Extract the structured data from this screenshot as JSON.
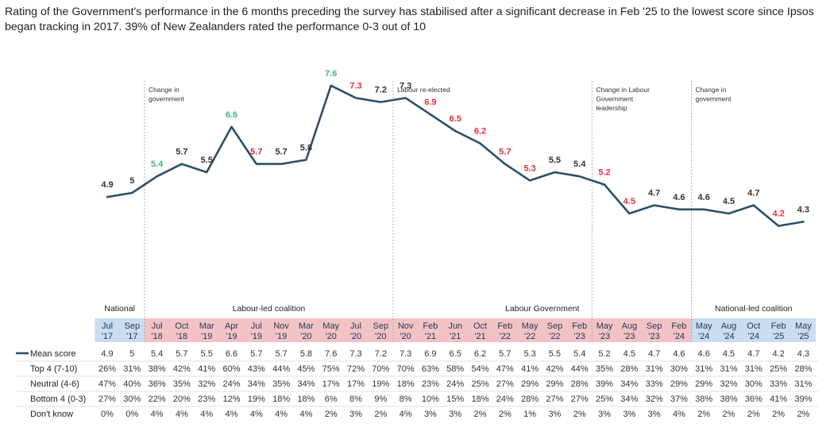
{
  "title": "Rating of the Government's performance in the 6 months preceding the survey has stabilised after a significant decrease in Feb '25 to the lowest score since Ipsos began tracking in 2017. 39% of New Zealanders rated the performance 0-3 out of 10",
  "colors": {
    "line": "#2b5068",
    "up": "#4caf7a",
    "down": "#e0313d",
    "neutral": "#333333",
    "national_band": "#c9dcf0",
    "labour_band": "#f3c2c5"
  },
  "chart_data": {
    "type": "line",
    "title": "Rating of the Government's performance",
    "ylim": [
      3,
      9
    ],
    "categories": [
      {
        "month": "Jul",
        "year": "'17",
        "band": "national"
      },
      {
        "month": "Sep",
        "year": "'17",
        "band": "national"
      },
      {
        "month": "Jul",
        "year": "'18",
        "band": "labour"
      },
      {
        "month": "Oct",
        "year": "'18",
        "band": "labour"
      },
      {
        "month": "Mar",
        "year": "'19",
        "band": "labour"
      },
      {
        "month": "Apr",
        "year": "'19",
        "band": "labour"
      },
      {
        "month": "Jul",
        "year": "'19",
        "band": "labour"
      },
      {
        "month": "Nov",
        "year": "'19",
        "band": "labour"
      },
      {
        "month": "Mar",
        "year": "'20",
        "band": "labour"
      },
      {
        "month": "May",
        "year": "'20",
        "band": "labour"
      },
      {
        "month": "Jul",
        "year": "'20",
        "band": "labour"
      },
      {
        "month": "Sep",
        "year": "'20",
        "band": "labour"
      },
      {
        "month": "Nov",
        "year": "'20",
        "band": "labour"
      },
      {
        "month": "Feb",
        "year": "'21",
        "band": "labour"
      },
      {
        "month": "Jun",
        "year": "'21",
        "band": "labour"
      },
      {
        "month": "Oct",
        "year": "'21",
        "band": "labour"
      },
      {
        "month": "Feb",
        "year": "'22",
        "band": "labour"
      },
      {
        "month": "May",
        "year": "'22",
        "band": "labour"
      },
      {
        "month": "Sep",
        "year": "'22",
        "band": "labour"
      },
      {
        "month": "Feb",
        "year": "'23",
        "band": "labour"
      },
      {
        "month": "May",
        "year": "'23",
        "band": "labour"
      },
      {
        "month": "Aug",
        "year": "'23",
        "band": "labour"
      },
      {
        "month": "Sep",
        "year": "'23",
        "band": "labour"
      },
      {
        "month": "Feb",
        "year": "'24",
        "band": "labour"
      },
      {
        "month": "May",
        "year": "'24",
        "band": "national"
      },
      {
        "month": "Aug",
        "year": "'24",
        "band": "national"
      },
      {
        "month": "Oct",
        "year": "'24",
        "band": "national"
      },
      {
        "month": "Feb",
        "year": "'25",
        "band": "national"
      },
      {
        "month": "May",
        "year": "'25",
        "band": "national"
      }
    ],
    "series": [
      {
        "name": "Mean score",
        "values": [
          4.9,
          5,
          5.4,
          5.7,
          5.5,
          6.6,
          5.7,
          5.7,
          5.8,
          7.6,
          7.3,
          7.2,
          7.3,
          6.9,
          6.5,
          6.2,
          5.7,
          5.3,
          5.5,
          5.4,
          5.2,
          4.5,
          4.7,
          4.6,
          4.6,
          4.5,
          4.7,
          4.2,
          4.3
        ],
        "labels": [
          "4.9",
          "5",
          "5.4",
          "5.7",
          "5.5",
          "6.6",
          "5.7",
          "5.7",
          "5.8",
          "7.6",
          "7.3",
          "7.2",
          "7.3",
          "6.9",
          "6.5",
          "6.2",
          "5.7",
          "5.3",
          "5.5",
          "5.4",
          "5.2",
          "4.5",
          "4.7",
          "4.6",
          "4.6",
          "4.5",
          "4.7",
          "4.2",
          "4.3"
        ],
        "label_colors": [
          "neutral",
          "neutral",
          "up",
          "neutral",
          "neutral",
          "up",
          "down",
          "neutral",
          "neutral",
          "up",
          "down",
          "neutral",
          "neutral",
          "down",
          "down",
          "down",
          "down",
          "down",
          "neutral",
          "neutral",
          "down",
          "down",
          "neutral",
          "neutral",
          "neutral",
          "neutral",
          "neutral",
          "down",
          "neutral"
        ]
      }
    ],
    "annotations": [
      {
        "text": [
          "Change in",
          "government"
        ],
        "after_index": 1
      },
      {
        "text": [
          "Labour re-elected"
        ],
        "after_index": 11
      },
      {
        "text": [
          "Change in Labour",
          "Government",
          "leadership"
        ],
        "after_index": 19
      },
      {
        "text": [
          "Change in",
          "government"
        ],
        "after_index": 23
      }
    ],
    "groups": [
      {
        "label": "National",
        "from": 0,
        "to": 1
      },
      {
        "label": "Labour-led coalition",
        "from": 2,
        "to": 11
      },
      {
        "label": "Labour Government",
        "from": 12,
        "to": 23
      },
      {
        "label": "National-led coalition",
        "from": 24,
        "to": 28
      }
    ],
    "table": {
      "legend_label": "Mean score",
      "rows": [
        {
          "label": "Top 4 (7-10)",
          "values": [
            "26%",
            "31%",
            "38%",
            "42%",
            "41%",
            "60%",
            "43%",
            "44%",
            "45%",
            "75%",
            "72%",
            "70%",
            "70%",
            "63%",
            "58%",
            "54%",
            "47%",
            "41%",
            "42%",
            "44%",
            "35%",
            "28%",
            "31%",
            "30%",
            "31%",
            "31%",
            "31%",
            "25%",
            "28%"
          ]
        },
        {
          "label": "Neutral (4-6)",
          "values": [
            "47%",
            "40%",
            "36%",
            "35%",
            "32%",
            "24%",
            "34%",
            "35%",
            "34%",
            "17%",
            "17%",
            "19%",
            "18%",
            "23%",
            "24%",
            "25%",
            "27%",
            "29%",
            "29%",
            "28%",
            "39%",
            "34%",
            "33%",
            "29%",
            "29%",
            "32%",
            "30%",
            "33%",
            "31%"
          ]
        },
        {
          "label": "Bottom 4 (0-3)",
          "values": [
            "27%",
            "30%",
            "22%",
            "20%",
            "23%",
            "12%",
            "19%",
            "18%",
            "18%",
            "6%",
            "8%",
            "9%",
            "8%",
            "10%",
            "15%",
            "18%",
            "24%",
            "28%",
            "27%",
            "27%",
            "25%",
            "34%",
            "32%",
            "37%",
            "38%",
            "38%",
            "36%",
            "41%",
            "39%"
          ]
        },
        {
          "label": "Don't know",
          "values": [
            "0%",
            "0%",
            "4%",
            "4%",
            "4%",
            "4%",
            "4%",
            "4%",
            "4%",
            "2%",
            "3%",
            "2%",
            "4%",
            "3%",
            "3%",
            "2%",
            "2%",
            "1%",
            "3%",
            "2%",
            "3%",
            "3%",
            "3%",
            "4%",
            "2%",
            "2%",
            "2%",
            "2%",
            "2%"
          ]
        }
      ]
    }
  }
}
